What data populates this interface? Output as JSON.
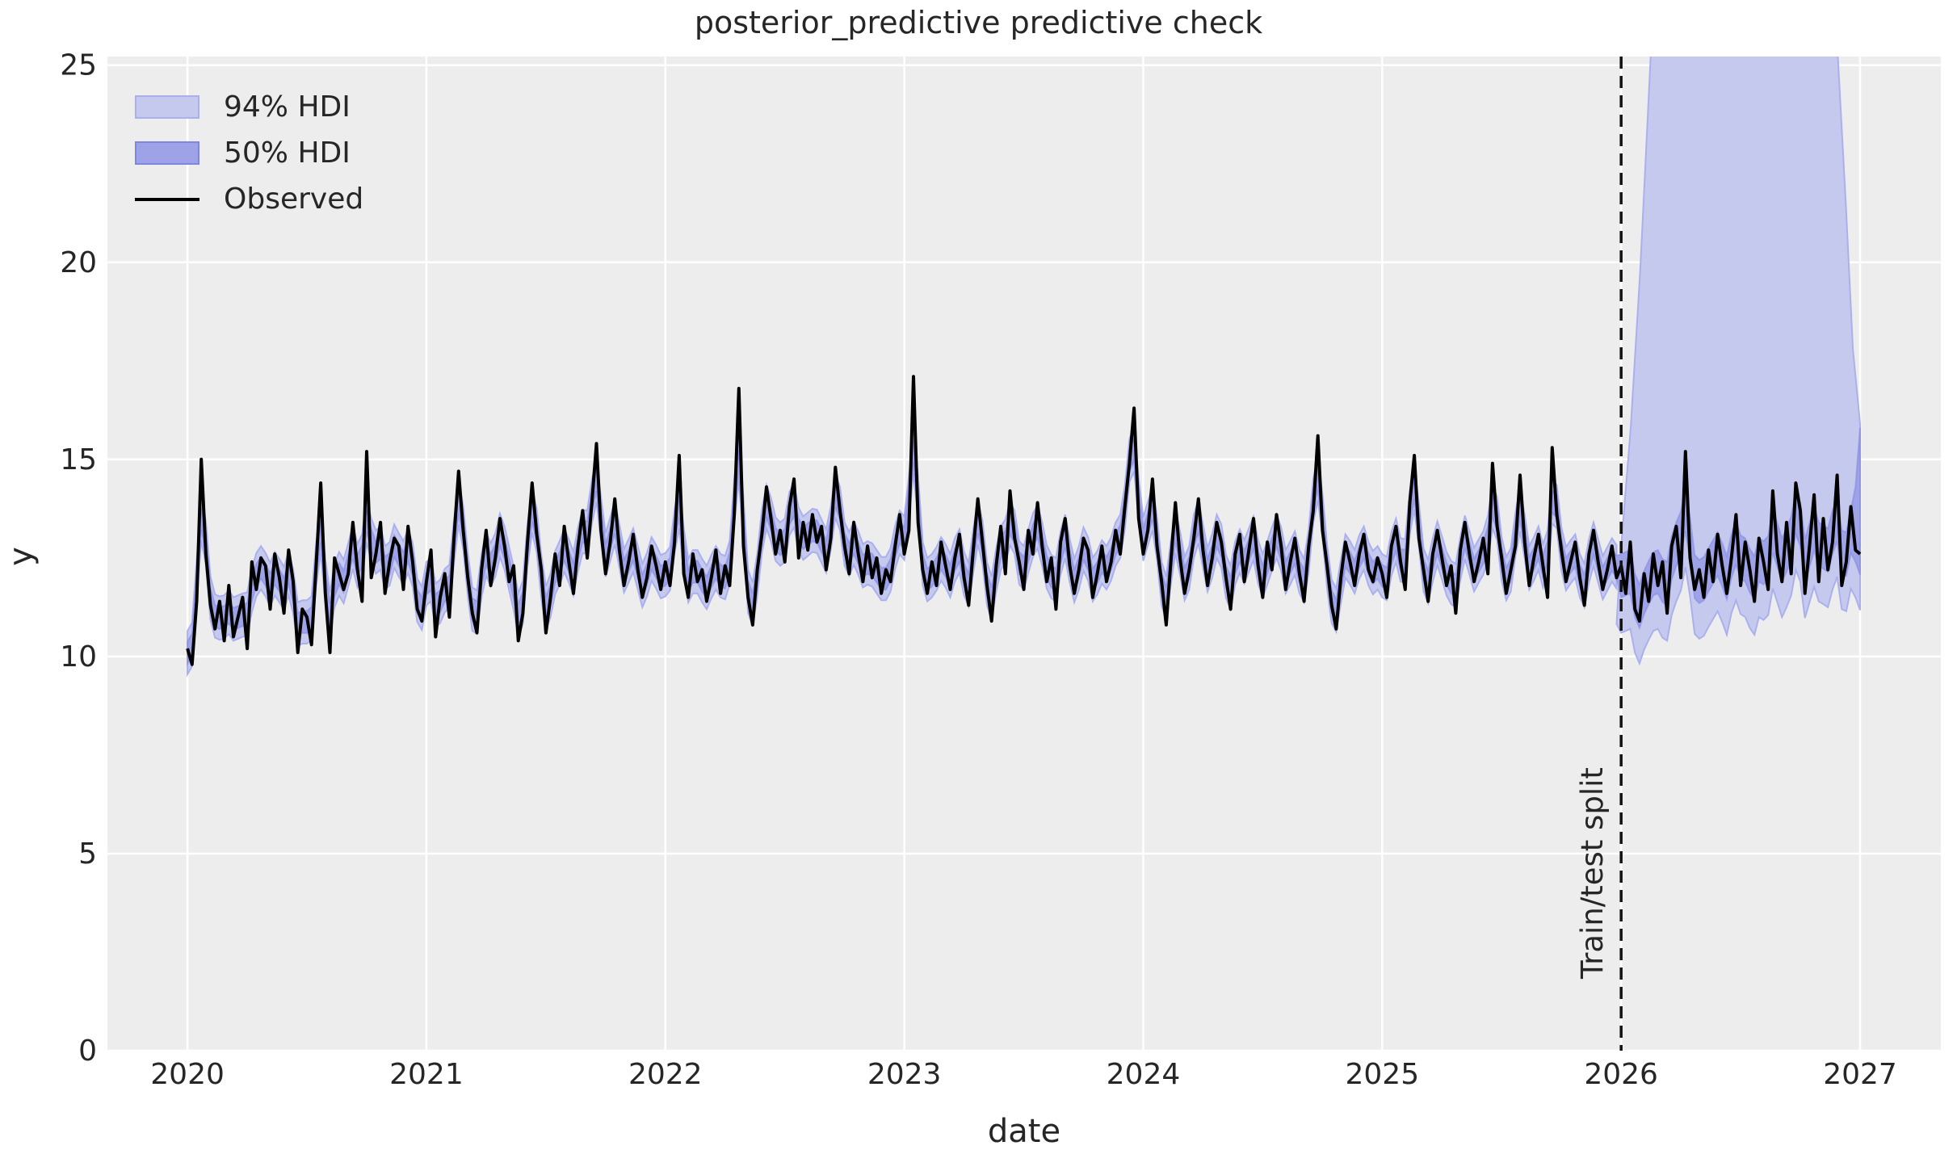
{
  "figure": {
    "title": "posterior_predictive predictive check",
    "xlabel": "date",
    "ylabel": "y",
    "split_label": "Train/test split",
    "colors": {
      "figure_background": "#ffffff",
      "axes_background": "#ededed",
      "grid": "#ffffff",
      "text": "#262626",
      "observed_line": "#000000",
      "hdi94_fill": "#c6c9ee",
      "hdi94_edge": "#aab0ee",
      "hdi50_fill": "#9ea3e8",
      "hdi50_edge": "#7f86e2",
      "split_line": "#111111"
    }
  },
  "legend": {
    "items": [
      {
        "label": "94% HDI",
        "kind": "band",
        "fill": "#c6c9ee",
        "edge": "#aab0ee"
      },
      {
        "label": "50% HDI",
        "kind": "band",
        "fill": "#9ea3e8",
        "edge": "#7f86e2"
      },
      {
        "label": "Observed",
        "kind": "line",
        "color": "#000000"
      }
    ]
  },
  "chart_data": {
    "type": "line",
    "title": "posterior_predictive predictive check",
    "xlabel": "date",
    "ylabel": "y",
    "xlim": [
      2019.665,
      2027.338
    ],
    "ylim": [
      0,
      25.22
    ],
    "xticks": [
      2020,
      2021,
      2022,
      2023,
      2024,
      2025,
      2026,
      2027
    ],
    "yticks": [
      0,
      5,
      10,
      15,
      20,
      25
    ],
    "grid": true,
    "legend_position": "upper left",
    "train_test_split_x": 2026.0,
    "observed": {
      "x_start": 2020.0,
      "x_step_years": 0.0192308,
      "values": [
        10.2,
        9.8,
        11.4,
        15.0,
        12.6,
        11.3,
        10.7,
        11.4,
        10.4,
        11.8,
        10.5,
        11.0,
        11.5,
        10.2,
        12.4,
        11.7,
        12.5,
        12.3,
        11.2,
        12.6,
        12.0,
        11.1,
        12.7,
        11.9,
        10.1,
        11.2,
        11.0,
        10.3,
        12.3,
        14.4,
        11.6,
        10.1,
        12.5,
        12.1,
        11.7,
        12.1,
        13.4,
        12.2,
        11.4,
        15.2,
        12.0,
        12.6,
        13.4,
        11.6,
        12.4,
        13.0,
        12.8,
        11.7,
        13.3,
        12.4,
        11.2,
        10.9,
        11.9,
        12.7,
        10.5,
        11.5,
        12.1,
        11.0,
        13.0,
        14.7,
        13.2,
        12.0,
        11.1,
        10.6,
        12.2,
        13.2,
        11.8,
        12.5,
        13.5,
        12.8,
        11.9,
        12.3,
        10.4,
        11.1,
        12.9,
        14.4,
        13.1,
        12.2,
        10.6,
        11.5,
        12.6,
        11.8,
        13.3,
        12.4,
        11.6,
        12.8,
        13.7,
        12.5,
        13.9,
        15.4,
        13.2,
        12.1,
        12.9,
        14.0,
        12.7,
        11.8,
        12.4,
        13.1,
        12.2,
        11.5,
        12.0,
        12.8,
        12.3,
        11.7,
        12.4,
        11.8,
        12.9,
        15.1,
        12.1,
        11.5,
        12.6,
        11.9,
        12.2,
        11.4,
        12.0,
        12.7,
        11.6,
        12.3,
        11.8,
        13.6,
        16.8,
        12.8,
        11.5,
        10.8,
        12.2,
        13.1,
        14.3,
        13.5,
        12.6,
        13.2,
        12.4,
        13.8,
        14.5,
        12.5,
        13.4,
        12.7,
        13.6,
        12.9,
        13.3,
        12.2,
        13.0,
        14.8,
        13.7,
        12.8,
        12.1,
        13.4,
        12.6,
        11.9,
        12.8,
        12.0,
        12.5,
        11.6,
        12.2,
        11.9,
        12.8,
        13.6,
        12.6,
        13.2,
        17.1,
        13.4,
        12.2,
        11.6,
        12.4,
        11.8,
        12.9,
        12.3,
        11.7,
        12.5,
        13.1,
        12.0,
        11.3,
        12.7,
        14.0,
        12.9,
        11.8,
        10.9,
        12.3,
        13.3,
        12.1,
        14.2,
        13.0,
        12.4,
        11.7,
        13.2,
        12.6,
        13.9,
        12.8,
        11.9,
        12.5,
        11.2,
        12.9,
        13.5,
        12.3,
        11.6,
        12.2,
        13.0,
        12.7,
        11.5,
        12.1,
        12.8,
        11.9,
        12.4,
        13.2,
        12.6,
        13.8,
        14.9,
        16.3,
        13.5,
        12.6,
        13.2,
        14.5,
        12.8,
        11.9,
        10.8,
        12.4,
        13.9,
        12.5,
        11.6,
        12.2,
        13.0,
        14.0,
        12.7,
        11.8,
        12.5,
        13.4,
        12.9,
        12.0,
        11.2,
        12.6,
        13.1,
        11.9,
        12.7,
        13.5,
        12.3,
        11.5,
        12.9,
        12.2,
        13.6,
        12.8,
        11.7,
        12.4,
        13.0,
        12.1,
        11.4,
        12.8,
        13.7,
        15.6,
        13.2,
        12.3,
        11.3,
        10.7,
        12.0,
        12.9,
        12.4,
        11.8,
        12.6,
        13.1,
        12.2,
        11.9,
        12.5,
        12.1,
        11.5,
        12.8,
        13.3,
        12.4,
        11.7,
        13.9,
        15.1,
        13.0,
        12.2,
        11.4,
        12.6,
        13.2,
        12.5,
        11.8,
        12.3,
        11.1,
        12.7,
        13.4,
        12.6,
        11.9,
        12.4,
        13.0,
        12.1,
        14.9,
        13.3,
        12.5,
        11.6,
        12.2,
        12.8,
        14.6,
        12.9,
        11.8,
        12.5,
        13.1,
        12.3,
        11.5,
        15.3,
        13.6,
        12.7,
        11.9,
        12.4,
        12.9,
        12.0,
        11.3,
        12.6,
        13.2,
        12.4,
        11.7,
        12.2,
        12.8,
        12.0,
        12.3,
        11.6,
        12.9,
        11.2,
        10.9,
        12.1,
        11.4,
        12.6,
        11.8,
        12.4,
        11.1,
        12.8,
        13.3,
        12.0,
        15.2,
        12.5,
        11.7,
        12.2,
        11.5,
        12.7,
        11.9,
        13.1,
        12.3,
        11.6,
        12.5,
        13.6,
        11.8,
        12.9,
        12.2,
        11.4,
        13.0,
        12.4,
        11.7,
        14.2,
        12.6,
        11.9,
        13.4,
        12.1,
        14.4,
        13.7,
        11.6,
        12.8,
        14.1,
        11.9,
        13.5,
        12.2,
        12.9,
        14.6,
        11.8,
        12.4,
        13.8,
        12.7,
        12.6
      ]
    },
    "hdi_50": {
      "label": "50% HDI",
      "center": "3-point smoothed observed",
      "train_halfwidth": 0.28,
      "test_halfwidth": 0.55,
      "end_spike_upper": [
        14.3,
        15.8
      ]
    },
    "hdi_94": {
      "label": "94% HDI",
      "center": "3-point smoothed observed",
      "train_halfwidth": 0.55,
      "test_lower_offset": 1.45,
      "test_upper_envelope": [
        [
          2026.0,
          12.8
        ],
        [
          2026.04,
          15.8
        ],
        [
          2026.08,
          19.8
        ],
        [
          2026.13,
          26.0
        ],
        [
          2026.9,
          26.0
        ],
        [
          2026.94,
          21.5
        ],
        [
          2026.97,
          17.8
        ],
        [
          2027.0,
          15.9
        ]
      ]
    }
  }
}
